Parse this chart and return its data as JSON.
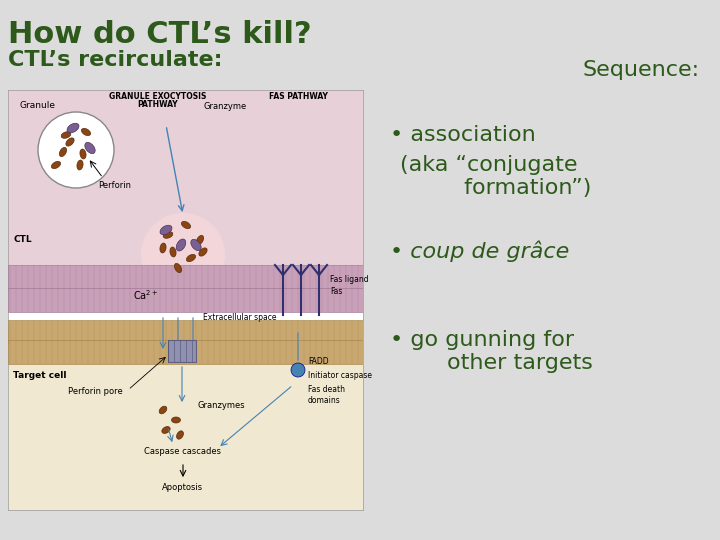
{
  "title": "How do CTL’s kill?",
  "subtitle": "CTL’s recirculate:",
  "sequence_label": "Sequence:",
  "bullet1": "• association",
  "bullet1_sub": "(aka “conjugate\n         formation”)",
  "bullet2": "• coup de grâce",
  "bullet3": "• go gunning for\n        other targets",
  "bg_color": "#dcdcdc",
  "title_color": "#2d5a1b",
  "text_color": "#2d5a1b",
  "title_fontsize": 22,
  "subtitle_fontsize": 16,
  "sequence_fontsize": 16,
  "bullet_fontsize": 16
}
